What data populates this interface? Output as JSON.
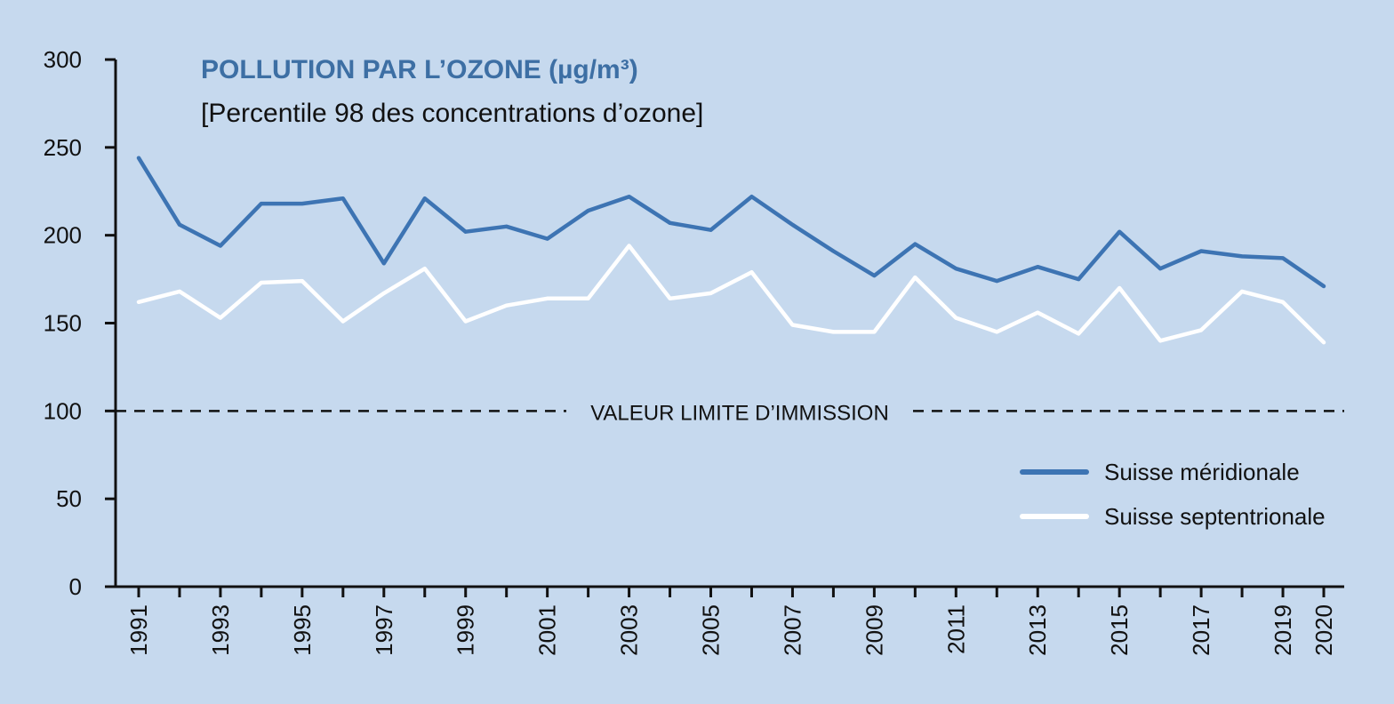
{
  "chart_data": {
    "type": "line",
    "title": "POLLUTION PAR L’OZONE (µg/m³)",
    "subtitle": "[Percentile 98 des concentrations d’ozone]",
    "xlabel": "",
    "ylabel": "",
    "ylim": [
      0,
      300
    ],
    "yticks": [
      "0",
      "50",
      "100",
      "150",
      "200",
      "250",
      "300"
    ],
    "x": [
      1991,
      1992,
      1993,
      1994,
      1995,
      1996,
      1997,
      1998,
      1999,
      2000,
      2001,
      2002,
      2003,
      2004,
      2005,
      2006,
      2007,
      2008,
      2009,
      2010,
      2011,
      2012,
      2013,
      2014,
      2015,
      2016,
      2017,
      2018,
      2019,
      2020
    ],
    "xtick_labels": [
      "1991",
      "1993",
      "1995",
      "1997",
      "1999",
      "2001",
      "2003",
      "2005",
      "2007",
      "2009",
      "2011",
      "2013",
      "2015",
      "2017",
      "2019",
      "2020"
    ],
    "series": [
      {
        "name": "Suisse méridionale",
        "color": "#3d74b3",
        "values": [
          244,
          206,
          194,
          218,
          218,
          221,
          184,
          221,
          202,
          205,
          198,
          214,
          222,
          207,
          203,
          222,
          206,
          191,
          177,
          195,
          181,
          174,
          182,
          175,
          202,
          181,
          191,
          188,
          187,
          171
        ]
      },
      {
        "name": "Suisse septentrionale",
        "color": "#ffffff",
        "values": [
          162,
          168,
          153,
          173,
          174,
          151,
          167,
          181,
          151,
          160,
          164,
          164,
          194,
          164,
          167,
          179,
          149,
          145,
          145,
          176,
          153,
          145,
          156,
          144,
          170,
          140,
          146,
          168,
          162,
          139
        ]
      }
    ],
    "reference_line": {
      "value": 100,
      "label": "VALEUR LIMITE D’IMMISSION",
      "style": "dashed",
      "color": "#111111"
    },
    "legend_position": "right, below the reference line",
    "grid": false
  }
}
